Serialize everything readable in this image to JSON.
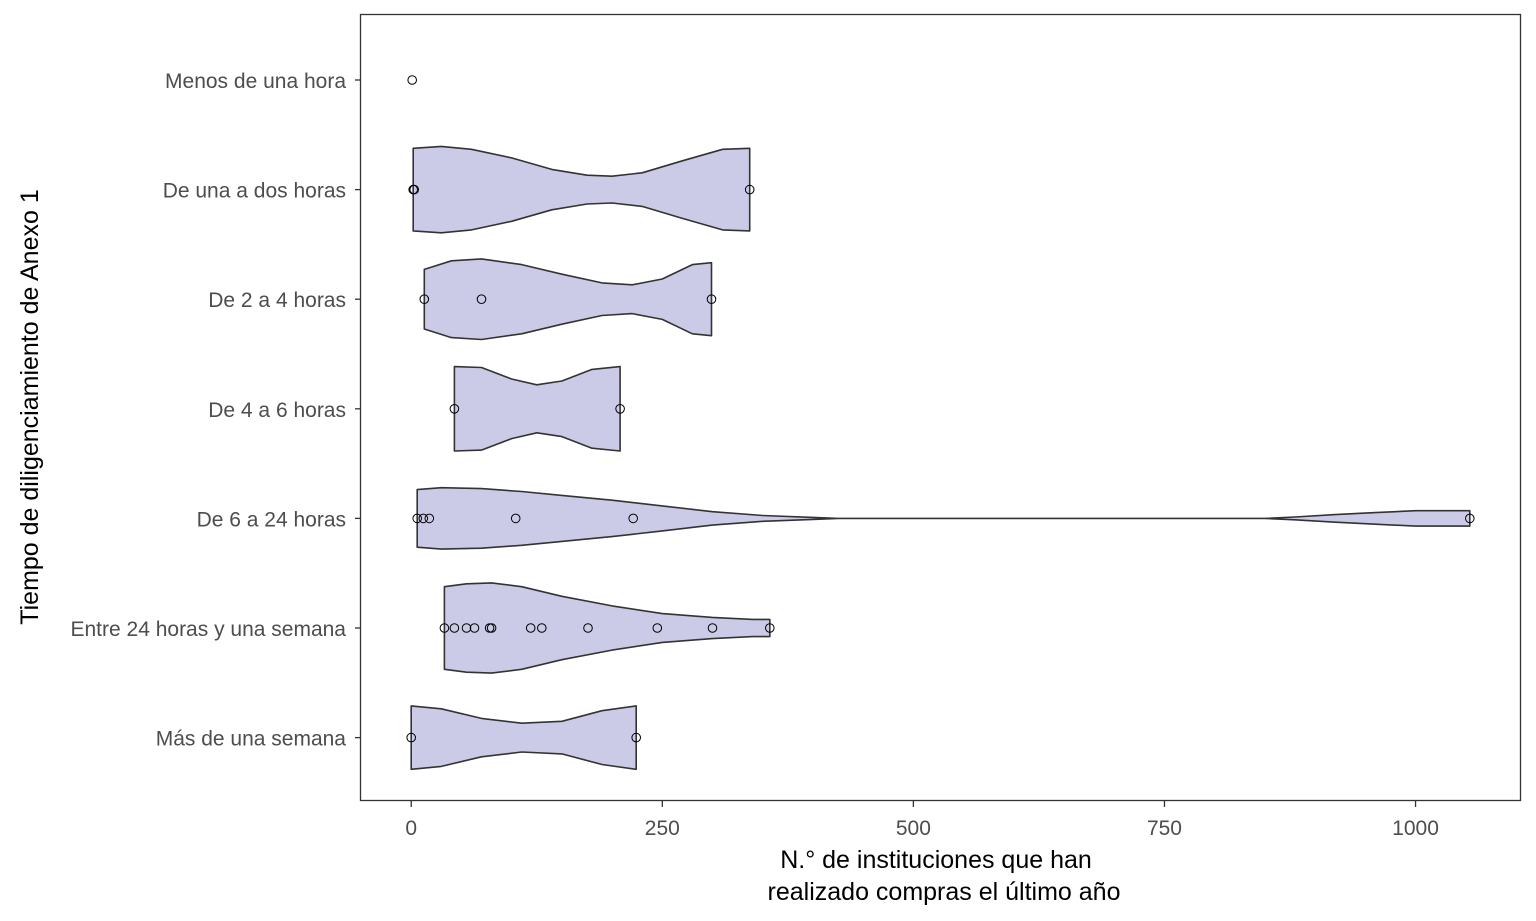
{
  "chart_data": {
    "type": "violin",
    "orientation": "horizontal",
    "title": "",
    "xlabel": [
      "N.° de instituciones que han",
      "realizado compras el último año"
    ],
    "ylabel": "Tiempo de diligenciamiento de Anexo 1",
    "xlim": [
      -50,
      1105
    ],
    "xticks": [
      0,
      250,
      500,
      750,
      1000
    ],
    "xtick_labels": [
      "0",
      "250",
      "500",
      "750",
      "1000"
    ],
    "grid": false,
    "fill_color": "#cbcbe7",
    "categories": [
      "Menos de una hora",
      "De una a dos horas",
      "De 2 a 4 horas",
      "De 4 a 6 horas",
      "De 6 a 24 horas",
      "Entre 24 horas y una semana",
      "Más de una semana"
    ],
    "groups": [
      {
        "category": "Menos de una hora",
        "points": [
          1
        ]
      },
      {
        "category": "De una a dos horas",
        "points": [
          2,
          3,
          337
        ]
      },
      {
        "category": "De 2 a 4 horas",
        "points": [
          13,
          70,
          299
        ]
      },
      {
        "category": "De 4 a 6 horas",
        "points": [
          43,
          208
        ]
      },
      {
        "category": "De 6 a 24 horas",
        "points": [
          6,
          12,
          18,
          104,
          221,
          1054
        ]
      },
      {
        "category": "Entre 24 horas y una semana",
        "points": [
          33,
          43,
          55,
          63,
          78,
          80,
          119,
          130,
          176,
          245,
          300,
          357
        ]
      },
      {
        "category": "Más de una semana",
        "points": [
          0,
          224
        ]
      }
    ],
    "violins": [
      {
        "category": "Menos de una hora",
        "profile": []
      },
      {
        "category": "De una a dos horas",
        "profile": [
          [
            2,
            0.86
          ],
          [
            30,
            0.9
          ],
          [
            60,
            0.84
          ],
          [
            100,
            0.66
          ],
          [
            140,
            0.42
          ],
          [
            175,
            0.3
          ],
          [
            200,
            0.28
          ],
          [
            230,
            0.35
          ],
          [
            270,
            0.6
          ],
          [
            310,
            0.84
          ],
          [
            337,
            0.86
          ]
        ]
      },
      {
        "category": "De 2 a 4 horas",
        "profile": [
          [
            13,
            0.62
          ],
          [
            40,
            0.8
          ],
          [
            70,
            0.84
          ],
          [
            110,
            0.72
          ],
          [
            150,
            0.52
          ],
          [
            190,
            0.34
          ],
          [
            220,
            0.3
          ],
          [
            250,
            0.42
          ],
          [
            280,
            0.72
          ],
          [
            299,
            0.76
          ]
        ]
      },
      {
        "category": "De 4 a 6 horas",
        "profile": [
          [
            43,
            0.88
          ],
          [
            70,
            0.86
          ],
          [
            100,
            0.62
          ],
          [
            125,
            0.5
          ],
          [
            150,
            0.58
          ],
          [
            180,
            0.82
          ],
          [
            208,
            0.88
          ]
        ]
      },
      {
        "category": "De 6 a 24 horas",
        "profile": [
          [
            6,
            0.6
          ],
          [
            30,
            0.64
          ],
          [
            70,
            0.62
          ],
          [
            110,
            0.56
          ],
          [
            150,
            0.48
          ],
          [
            200,
            0.38
          ],
          [
            250,
            0.26
          ],
          [
            300,
            0.14
          ],
          [
            350,
            0.06
          ],
          [
            400,
            0.02
          ],
          [
            425,
            0.0
          ],
          [
            850,
            0.0
          ],
          [
            880,
            0.03
          ],
          [
            920,
            0.08
          ],
          [
            960,
            0.12
          ],
          [
            1000,
            0.16
          ],
          [
            1054,
            0.16
          ]
        ]
      },
      {
        "category": "Entre 24 horas y una semana",
        "profile": [
          [
            33,
            0.86
          ],
          [
            55,
            0.92
          ],
          [
            80,
            0.94
          ],
          [
            110,
            0.86
          ],
          [
            150,
            0.66
          ],
          [
            200,
            0.46
          ],
          [
            250,
            0.3
          ],
          [
            300,
            0.22
          ],
          [
            340,
            0.18
          ],
          [
            357,
            0.18
          ]
        ]
      },
      {
        "category": "Más de una semana",
        "profile": [
          [
            0,
            0.66
          ],
          [
            30,
            0.6
          ],
          [
            70,
            0.4
          ],
          [
            110,
            0.3
          ],
          [
            150,
            0.34
          ],
          [
            190,
            0.56
          ],
          [
            224,
            0.66
          ]
        ]
      }
    ]
  }
}
